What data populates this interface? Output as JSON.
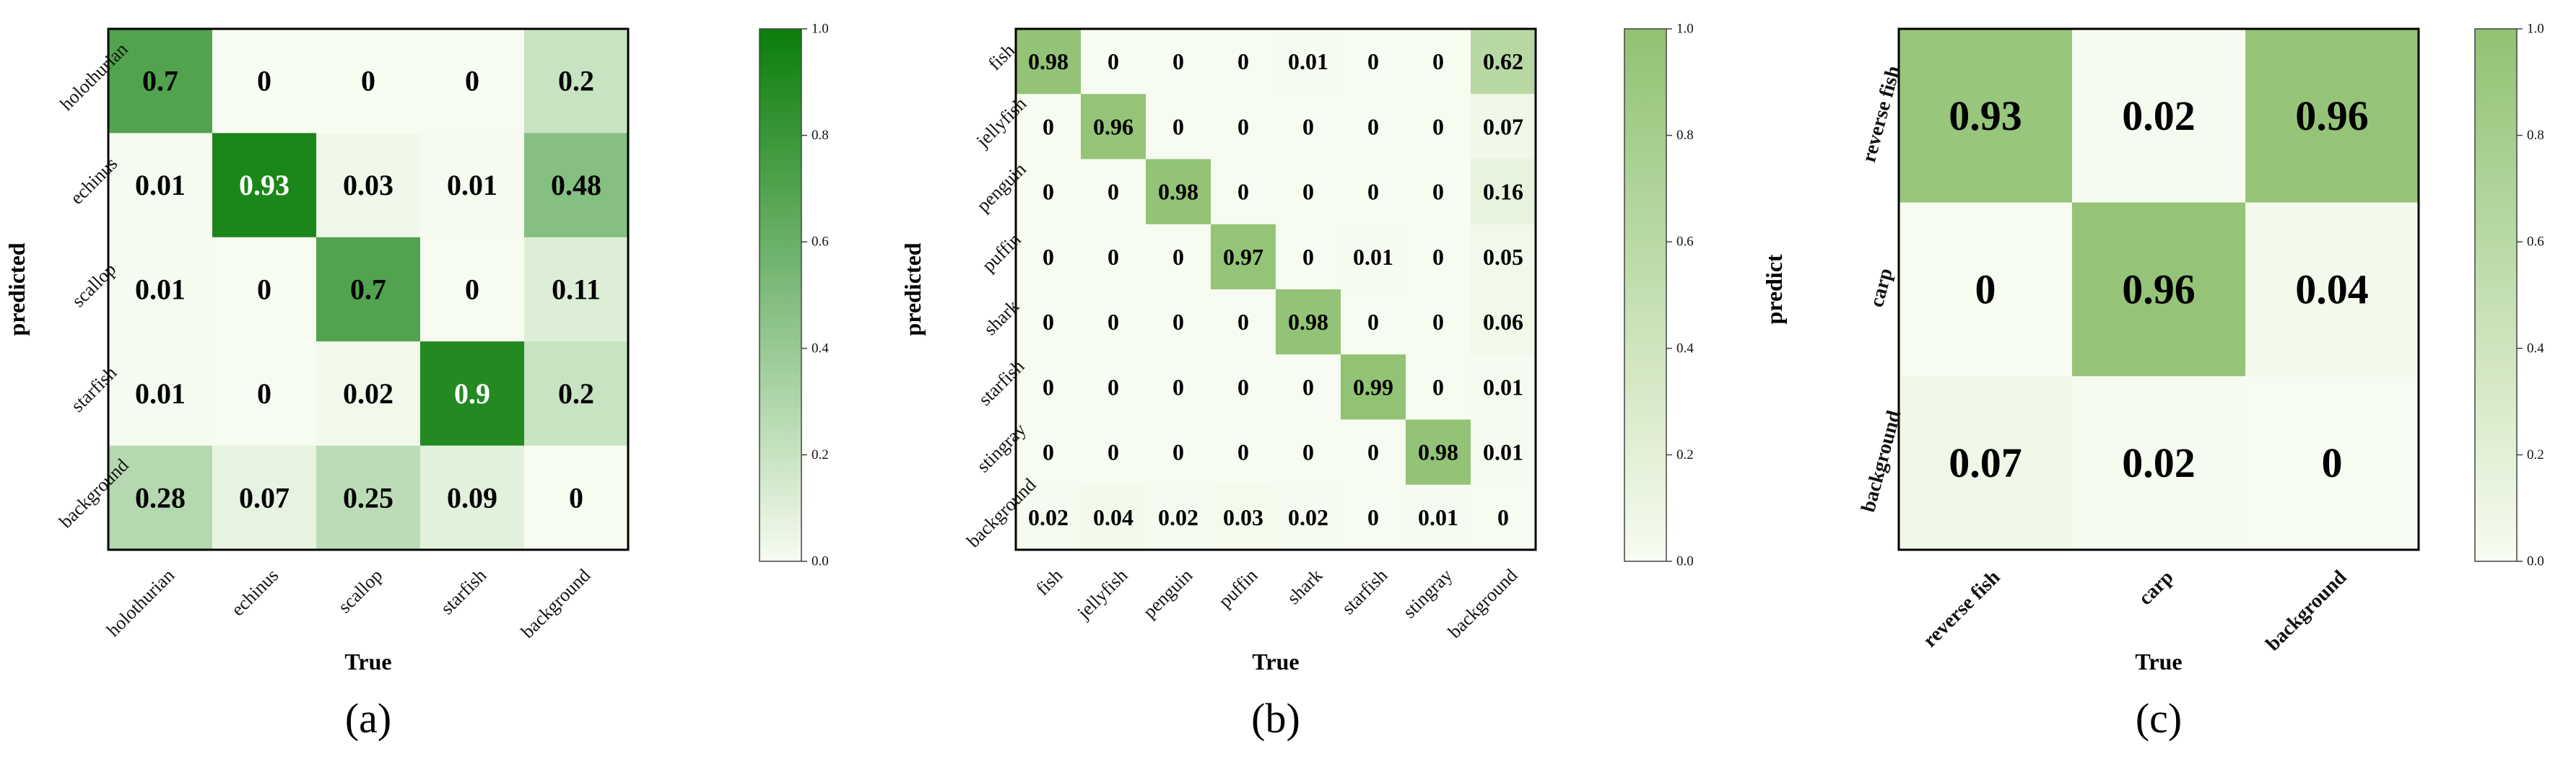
{
  "chart_data": [
    {
      "type": "heatmap",
      "panel": "(a)",
      "xlabel": "True",
      "ylabel": "predicted",
      "x_categories": [
        "holothurian",
        "echinus",
        "scallop",
        "starfish",
        "background"
      ],
      "y_categories": [
        "holothurian",
        "echinus",
        "scallop",
        "starfish",
        "background"
      ],
      "values": [
        [
          0.7,
          0,
          0,
          0,
          0.2
        ],
        [
          0.01,
          0.93,
          0.03,
          0.01,
          0.48
        ],
        [
          0.01,
          0,
          0.7,
          0,
          0.11
        ],
        [
          0.01,
          0,
          0.02,
          0.9,
          0.2
        ],
        [
          0.28,
          0.07,
          0.25,
          0.09,
          0
        ]
      ],
      "labels": [
        [
          "0.7",
          "0",
          "0",
          "0",
          "0.2"
        ],
        [
          "0.01",
          "0.93",
          "0.03",
          "0.01",
          "0.48"
        ],
        [
          "0.01",
          "0",
          "0.7",
          "0",
          "0.11"
        ],
        [
          "0.01",
          "0",
          "0.02",
          "0.9",
          "0.2"
        ],
        [
          "0.28",
          "0.07",
          "0.25",
          "0.09",
          "0"
        ]
      ],
      "colormap": {
        "low": "#f7fcf0",
        "high": "#0a7d0a"
      },
      "colorbar_range": [
        0.0,
        1.0
      ],
      "colorbar_ticks": [
        "0.0",
        "0.2",
        "0.4",
        "0.6",
        "0.8",
        "1.0"
      ]
    },
    {
      "type": "heatmap",
      "panel": "(b)",
      "xlabel": "True",
      "ylabel": "predicted",
      "x_categories": [
        "fish",
        "jellyfish",
        "penguin",
        "puffin",
        "shark",
        "starfish",
        "stingray",
        "background"
      ],
      "y_categories": [
        "fish",
        "jellyfish",
        "penguin",
        "puffin",
        "shark",
        "starfish",
        "stingray",
        "background"
      ],
      "values": [
        [
          0.98,
          0,
          0,
          0,
          0.01,
          0,
          0,
          0.62
        ],
        [
          0,
          0.96,
          0,
          0,
          0,
          0,
          0,
          0.07
        ],
        [
          0,
          0,
          0.98,
          0,
          0,
          0,
          0,
          0.16
        ],
        [
          0,
          0,
          0,
          0.97,
          0,
          0.01,
          0,
          0.05
        ],
        [
          0,
          0,
          0,
          0,
          0.98,
          0,
          0,
          0.06
        ],
        [
          0,
          0,
          0,
          0,
          0,
          0.99,
          0,
          0.01
        ],
        [
          0,
          0,
          0,
          0,
          0,
          0,
          0.98,
          0.01
        ],
        [
          0.02,
          0.04,
          0.02,
          0.03,
          0.02,
          0,
          0.01,
          0
        ]
      ],
      "labels": [
        [
          "0.98",
          "0",
          "0",
          "0",
          "0.01",
          "0",
          "0",
          "0.62"
        ],
        [
          "0",
          "0.96",
          "0",
          "0",
          "0",
          "0",
          "0",
          "0.07"
        ],
        [
          "0",
          "0",
          "0.98",
          "0",
          "0",
          "0",
          "0",
          "0.16"
        ],
        [
          "0",
          "0",
          "0",
          "0.97",
          "0",
          "0.01",
          "0",
          "0.05"
        ],
        [
          "0",
          "0",
          "0",
          "0",
          "0.98",
          "0",
          "0",
          "0.06"
        ],
        [
          "0",
          "0",
          "0",
          "0",
          "0",
          "0.99",
          "0",
          "0.01"
        ],
        [
          "0",
          "0",
          "0",
          "0",
          "0",
          "0",
          "0.98",
          "0.01"
        ],
        [
          "0.02",
          "0.04",
          "0.02",
          "0.03",
          "0.02",
          "0",
          "0.01",
          "0"
        ]
      ],
      "colormap": {
        "low": "#f7fcf0",
        "high": "#91c273"
      },
      "colorbar_range": [
        0.0,
        1.0
      ],
      "colorbar_ticks": [
        "0.0",
        "0.2",
        "0.4",
        "0.6",
        "0.8",
        "1.0"
      ]
    },
    {
      "type": "heatmap",
      "panel": "(c)",
      "xlabel": "True",
      "ylabel": "predict",
      "x_categories": [
        "reverse fish",
        "carp",
        "background"
      ],
      "y_categories": [
        "reverse fish",
        "carp",
        "background"
      ],
      "values": [
        [
          0.93,
          0.02,
          0.96
        ],
        [
          0,
          0.96,
          0.04
        ],
        [
          0.07,
          0.02,
          0
        ]
      ],
      "labels": [
        [
          "0.93",
          "0.02",
          "0.96"
        ],
        [
          "0",
          "0.96",
          "0.04"
        ],
        [
          "0.07",
          "0.02",
          "0"
        ]
      ],
      "colormap": {
        "low": "#f7fcf0",
        "high": "#91c273"
      },
      "colorbar_range": [
        0.0,
        1.0
      ],
      "colorbar_ticks": [
        "0.0",
        "0.2",
        "0.4",
        "0.6",
        "0.8",
        "1.0"
      ]
    }
  ]
}
